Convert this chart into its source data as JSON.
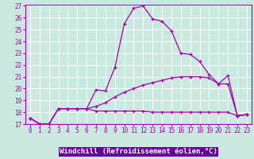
{
  "xlabel": "Windchill (Refroidissement éolien,°C)",
  "background_color": "#c8e8e0",
  "grid_color": "#b0d8d0",
  "line_color": "#aa00aa",
  "xlabel_bg_color": "#7700aa",
  "xlabel_text_color": "#ffffff",
  "x": [
    0,
    1,
    2,
    3,
    4,
    5,
    6,
    7,
    8,
    9,
    10,
    11,
    12,
    13,
    14,
    15,
    16,
    17,
    18,
    19,
    20,
    21,
    22,
    23
  ],
  "y_temp": [
    17.5,
    17.0,
    17.0,
    18.3,
    18.3,
    18.3,
    18.3,
    19.9,
    19.8,
    21.8,
    25.5,
    26.8,
    27.0,
    25.9,
    25.7,
    24.9,
    23.0,
    22.9,
    22.3,
    21.2,
    20.4,
    21.1,
    17.7,
    17.8
  ],
  "y_wind1": [
    17.5,
    17.0,
    17.0,
    18.3,
    18.3,
    18.3,
    18.3,
    18.1,
    18.1,
    18.1,
    18.1,
    18.1,
    18.1,
    18.0,
    18.0,
    18.0,
    18.0,
    18.0,
    18.0,
    18.0,
    18.0,
    18.0,
    17.7,
    17.8
  ],
  "y_wind2": [
    17.5,
    17.0,
    17.0,
    18.3,
    18.3,
    18.3,
    18.3,
    18.5,
    18.8,
    19.3,
    19.7,
    20.0,
    20.3,
    20.5,
    20.7,
    20.9,
    21.0,
    21.0,
    21.0,
    20.9,
    20.4,
    20.4,
    17.7,
    17.8
  ],
  "ylim": [
    17,
    27
  ],
  "xlim": [
    0,
    23
  ],
  "yticks": [
    17,
    18,
    19,
    20,
    21,
    22,
    23,
    24,
    25,
    26,
    27
  ],
  "xticks": [
    0,
    1,
    2,
    3,
    4,
    5,
    6,
    7,
    8,
    9,
    10,
    11,
    12,
    13,
    14,
    15,
    16,
    17,
    18,
    19,
    20,
    21,
    22,
    23
  ],
  "tick_fontsize": 5.5,
  "xlabel_fontsize": 6.5
}
